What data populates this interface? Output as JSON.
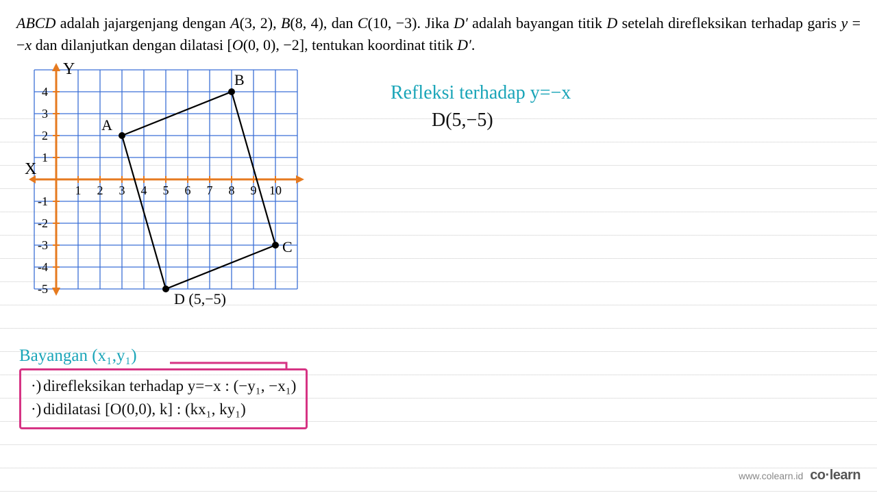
{
  "problem": {
    "text_parts": [
      {
        "t": "ABCD",
        "style": "ital"
      },
      {
        "t": " adalah jajargenjang dengan "
      },
      {
        "t": "A",
        "style": "ital"
      },
      {
        "t": "(3, 2), "
      },
      {
        "t": "B",
        "style": "ital"
      },
      {
        "t": "(8, 4), dan "
      },
      {
        "t": "C",
        "style": "ital"
      },
      {
        "t": "(10, −3). Jika "
      },
      {
        "t": "D′",
        "style": "prime"
      },
      {
        "t": " adalah bayangan titik "
      },
      {
        "t": "D",
        "style": "ital"
      },
      {
        "t": " setelah direfleksikan terhadap garis "
      },
      {
        "t": "y",
        "style": "ital"
      },
      {
        "t": " = −"
      },
      {
        "t": "x",
        "style": "ital"
      },
      {
        "t": " dan dilanjutkan dengan dilatasi ["
      },
      {
        "t": "O",
        "style": "ital"
      },
      {
        "t": "(0, 0), −2], tentukan koordinat titik "
      },
      {
        "t": "D′",
        "style": "prime"
      },
      {
        "t": "."
      }
    ]
  },
  "graph": {
    "grid_color": "#3b6fd6",
    "axis_color": "#e67a1f",
    "tick_color": "#e67a1f",
    "shape_color": "#000000",
    "point_color": "#000000",
    "label_color": "#000000",
    "handwritten_label_color": "#000000",
    "x_range": [
      -1,
      11
    ],
    "y_range": [
      -5,
      5
    ],
    "x_ticks": [
      1,
      2,
      3,
      4,
      5,
      6,
      7,
      8,
      9,
      10
    ],
    "y_ticks_pos": [
      1,
      2,
      3,
      4
    ],
    "y_ticks_neg": [
      -1,
      -2,
      -3,
      -4,
      -5
    ],
    "axis_labels": {
      "x": "X",
      "y": "Y"
    },
    "points": {
      "A": {
        "x": 3,
        "y": 2,
        "label": "A"
      },
      "B": {
        "x": 8,
        "y": 4,
        "label": "B"
      },
      "C": {
        "x": 10,
        "y": -3,
        "label": "C"
      },
      "D": {
        "x": 5,
        "y": -5,
        "label": "D (5,−5)"
      }
    }
  },
  "handwriting": {
    "reflection_title": "Refleksi terhadap y=−x",
    "d_point": "D(5,−5)"
  },
  "bottom": {
    "bayangan": "Bayangan  (x₁,y₁)",
    "rule1": "direfleksikan terhadap y=−x : (−y₁, −x₁)",
    "rule2": "didilatasi [O(0,0), k] : (kx₁, ky₁)"
  },
  "watermark": {
    "url": "www.colearn.id",
    "brand": "co·learn"
  },
  "colors": {
    "teal": "#1aa5b8",
    "magenta": "#d63384",
    "black": "#111111"
  }
}
